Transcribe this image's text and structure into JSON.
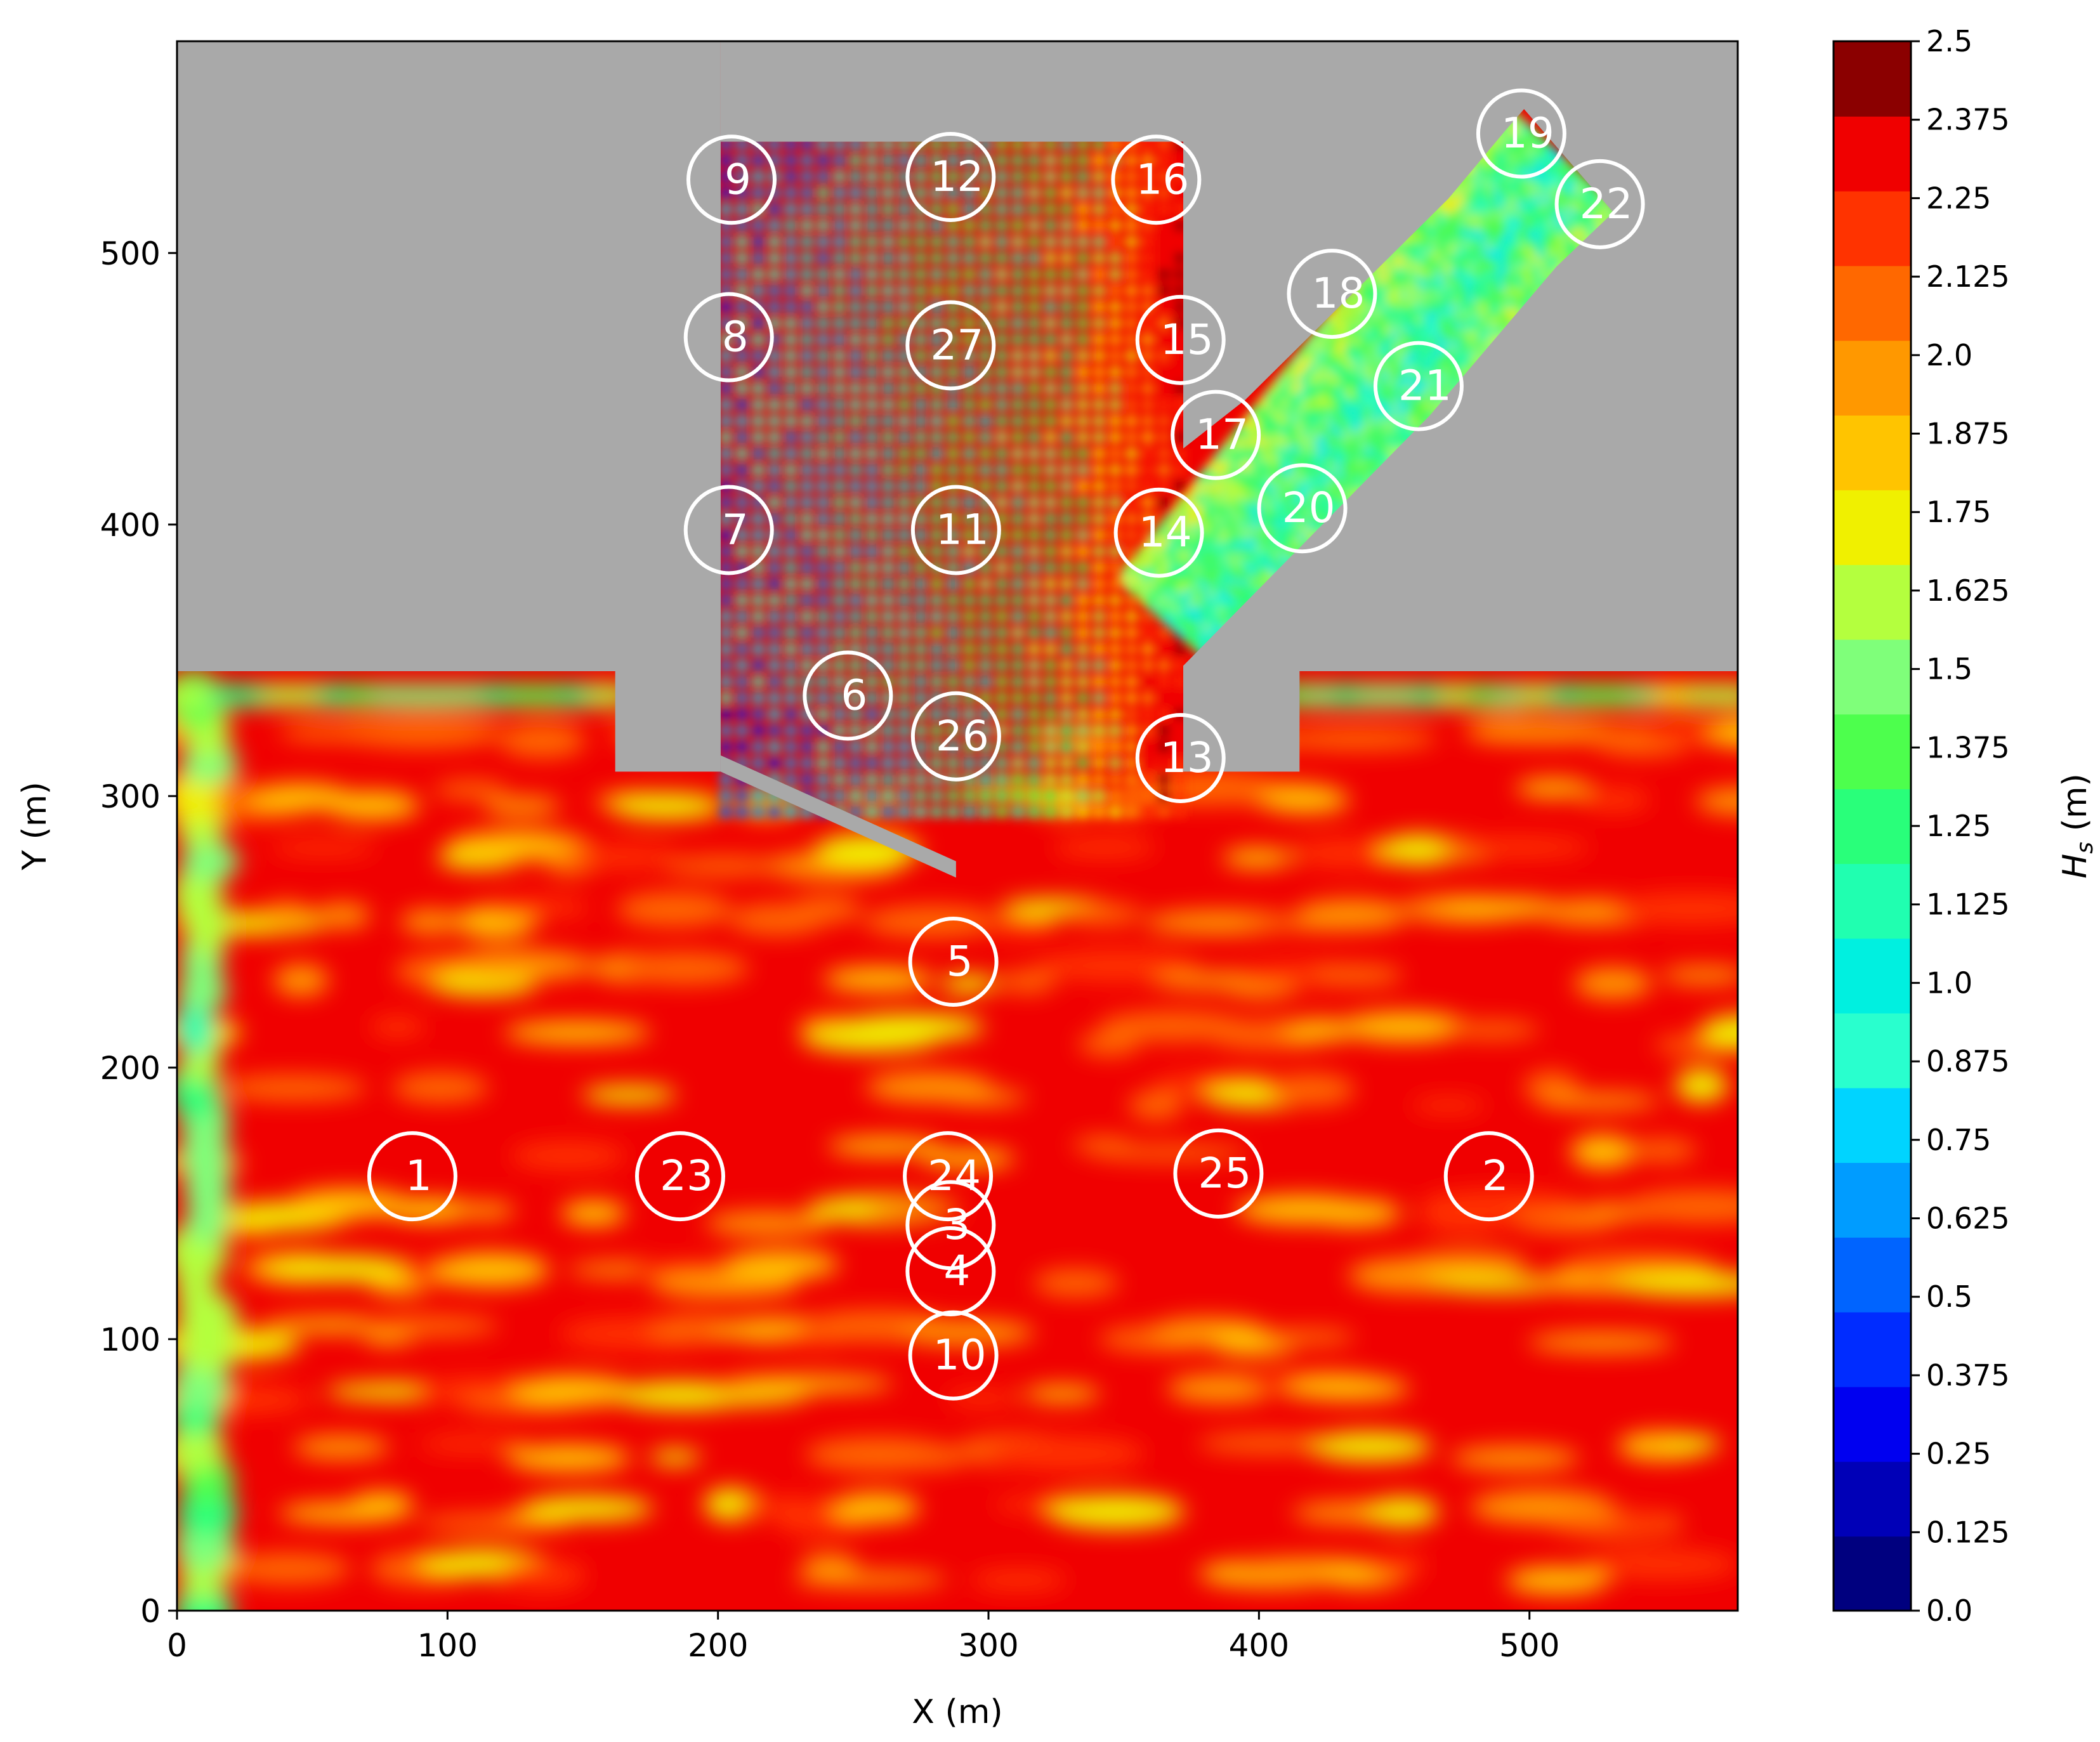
{
  "chart_data": {
    "type": "heatmap",
    "xlabel": "X (m)",
    "ylabel": "Y (m)",
    "xlim": [
      0,
      577
    ],
    "ylim": [
      0,
      578
    ],
    "x_ticks": [
      0,
      100,
      200,
      300,
      400,
      500
    ],
    "y_ticks": [
      0,
      100,
      200,
      300,
      400,
      500
    ],
    "x_tick_labels": [
      "0",
      "100",
      "200",
      "300",
      "400",
      "500"
    ],
    "y_tick_labels": [
      "0",
      "100",
      "200",
      "300",
      "400",
      "500"
    ],
    "land_color": "#a9a9a9",
    "colorbar": {
      "label": "H_s (m)",
      "label_main": "H",
      "label_sub": "s",
      "label_unit": " (m)",
      "min": 0.0,
      "max": 2.5,
      "levels": [
        0.0,
        0.125,
        0.25,
        0.375,
        0.5,
        0.625,
        0.75,
        0.875,
        1.0,
        1.125,
        1.25,
        1.375,
        1.5,
        1.625,
        1.75,
        1.875,
        2.0,
        2.125,
        2.25,
        2.375,
        2.5
      ],
      "tick_labels": [
        "0.0",
        "0.125",
        "0.25",
        "0.375",
        "0.5",
        "0.625",
        "0.75",
        "0.875",
        "1.0",
        "1.125",
        "1.25",
        "1.375",
        "1.5",
        "1.625",
        "1.75",
        "1.875",
        "2.0",
        "2.125",
        "2.25",
        "2.375",
        "2.5"
      ],
      "colors": [
        "#00007f",
        "#0000b7",
        "#0000f0",
        "#002cff",
        "#0064ff",
        "#009cff",
        "#00d4ff",
        "#29ffce",
        "#00f0e0",
        "#20ffb0",
        "#29ff7a",
        "#4dff4d",
        "#7fff7a",
        "#b4ff3e",
        "#f0f000",
        "#ffc400",
        "#ff9800",
        "#ff6800",
        "#ff3300",
        "#f00000",
        "#8b0000"
      ]
    },
    "domain": {
      "land_polygons": [
        [
          [
            0,
            578
          ],
          [
            577,
            578
          ],
          [
            577,
            346
          ],
          [
            415,
            346
          ],
          [
            415,
            309
          ],
          [
            372,
            309
          ],
          [
            372,
            346
          ],
          [
            498,
            553
          ],
          [
            531,
            515
          ],
          [
            372,
            346
          ],
          [
            372,
            541
          ],
          [
            201,
            541
          ],
          [
            201,
            313
          ],
          [
            288,
            270
          ],
          [
            288,
            270
          ],
          [
            201,
            313
          ],
          [
            201,
            346
          ],
          [
            162,
            346
          ],
          [
            162,
            309
          ],
          [
            200,
            309
          ],
          [
            200,
            578
          ]
        ]
      ]
    },
    "gauges": [
      {
        "id": "1",
        "x": 87,
        "y": 160
      },
      {
        "id": "2",
        "x": 485,
        "y": 160
      },
      {
        "id": "3",
        "x": 286,
        "y": 142
      },
      {
        "id": "4",
        "x": 286,
        "y": 125
      },
      {
        "id": "5",
        "x": 287,
        "y": 239
      },
      {
        "id": "6",
        "x": 248,
        "y": 337
      },
      {
        "id": "7",
        "x": 204,
        "y": 398
      },
      {
        "id": "8",
        "x": 204,
        "y": 469
      },
      {
        "id": "9",
        "x": 205,
        "y": 527
      },
      {
        "id": "10",
        "x": 287,
        "y": 94
      },
      {
        "id": "11",
        "x": 288,
        "y": 398
      },
      {
        "id": "12",
        "x": 286,
        "y": 528
      },
      {
        "id": "13",
        "x": 371,
        "y": 314
      },
      {
        "id": "14",
        "x": 363,
        "y": 397
      },
      {
        "id": "15",
        "x": 371,
        "y": 468
      },
      {
        "id": "16",
        "x": 362,
        "y": 527
      },
      {
        "id": "17",
        "x": 384,
        "y": 433
      },
      {
        "id": "18",
        "x": 427,
        "y": 485
      },
      {
        "id": "19",
        "x": 497,
        "y": 544
      },
      {
        "id": "20",
        "x": 416,
        "y": 406
      },
      {
        "id": "21",
        "x": 459,
        "y": 451
      },
      {
        "id": "22",
        "x": 526,
        "y": 518
      },
      {
        "id": "23",
        "x": 186,
        "y": 160
      },
      {
        "id": "24",
        "x": 285,
        "y": 160
      },
      {
        "id": "25",
        "x": 385,
        "y": 161
      },
      {
        "id": "26",
        "x": 288,
        "y": 322
      },
      {
        "id": "27",
        "x": 286,
        "y": 466
      }
    ]
  }
}
